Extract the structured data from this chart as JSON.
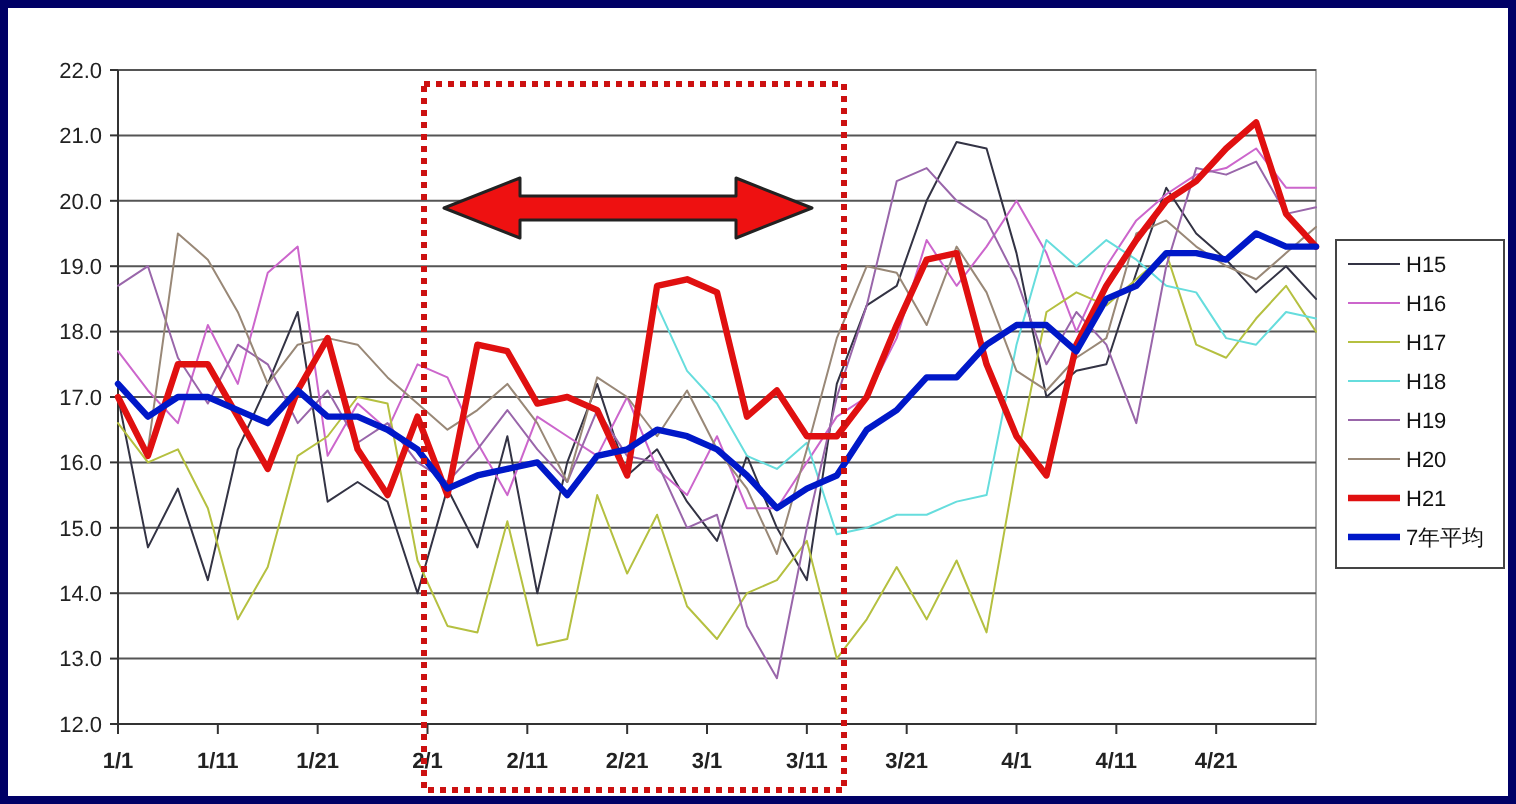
{
  "chart_data": {
    "type": "line",
    "x": [
      "--01-01",
      "--01-04",
      "--01-07",
      "--01-10",
      "--01-13",
      "--01-16",
      "--01-19",
      "--01-22",
      "--01-25",
      "--01-28",
      "--01-31",
      "--02-03",
      "--02-06",
      "--02-09",
      "--02-12",
      "--02-15",
      "--02-18",
      "--02-21",
      "--02-24",
      "--02-27",
      "--03-02",
      "--03-05",
      "--03-08",
      "--03-11",
      "--03-14",
      "--03-17",
      "--03-20",
      "--03-23",
      "--03-26",
      "--03-29",
      "--04-01",
      "--04-04",
      "--04-07",
      "--04-10",
      "--04-13",
      "--04-16",
      "--04-19",
      "--04-22",
      "--04-25",
      "--04-28",
      "--05-01"
    ],
    "xlim": [
      "--01-01",
      "--05-01"
    ],
    "xticks": [
      {
        "value": "--01-01",
        "label": "1/1"
      },
      {
        "value": "--01-11",
        "label": "1/11"
      },
      {
        "value": "--01-21",
        "label": "1/21"
      },
      {
        "value": "--02-01",
        "label": "2/1"
      },
      {
        "value": "--02-11",
        "label": "2/11"
      },
      {
        "value": "--02-21",
        "label": "2/21"
      },
      {
        "value": "--03-01",
        "label": "3/1"
      },
      {
        "value": "--03-11",
        "label": "3/11"
      },
      {
        "value": "--03-21",
        "label": "3/21"
      },
      {
        "value": "--04-01",
        "label": "4/1"
      },
      {
        "value": "--04-11",
        "label": "4/11"
      },
      {
        "value": "--04-21",
        "label": "4/21"
      }
    ],
    "ylim": [
      12,
      22
    ],
    "yticks": [
      {
        "value": 12,
        "label": "12.0"
      },
      {
        "value": 13,
        "label": "13.0"
      },
      {
        "value": 14,
        "label": "14.0"
      },
      {
        "value": 15,
        "label": "15.0"
      },
      {
        "value": 16,
        "label": "16.0"
      },
      {
        "value": 17,
        "label": "17.0"
      },
      {
        "value": 18,
        "label": "18.0"
      },
      {
        "value": 19,
        "label": "19.0"
      },
      {
        "value": 20,
        "label": "20.0"
      },
      {
        "value": 21,
        "label": "21.0"
      },
      {
        "value": 22,
        "label": "22.0"
      }
    ],
    "grid": "y",
    "legend": "right",
    "marker": "none",
    "line_style": "solid",
    "series": [
      {
        "name": "H15",
        "color": "#333344",
        "values": [
          17.0,
          14.7,
          15.6,
          14.2,
          16.2,
          17.2,
          18.3,
          15.4,
          15.7,
          15.4,
          14.0,
          15.6,
          14.7,
          16.4,
          14.0,
          16.0,
          17.2,
          15.8,
          16.2,
          15.4,
          14.8,
          16.1,
          15.0,
          14.2,
          17.2,
          18.4,
          18.7,
          20.0,
          20.9,
          20.8,
          19.2,
          17.0,
          17.4,
          17.5,
          18.9,
          20.2,
          19.5,
          19.1,
          18.6,
          19.0,
          18.5
        ]
      },
      {
        "name": "H16",
        "color": "#cc66cc",
        "values": [
          17.7,
          17.1,
          16.6,
          18.1,
          17.2,
          18.9,
          19.3,
          16.1,
          16.9,
          16.5,
          17.5,
          17.3,
          16.3,
          15.5,
          16.7,
          16.4,
          16.1,
          17.0,
          15.9,
          15.5,
          16.4,
          15.3,
          15.3,
          16.0,
          16.7,
          17.0,
          17.9,
          19.4,
          18.7,
          19.3,
          20.0,
          19.2,
          18.0,
          19.0,
          19.7,
          20.1,
          20.4,
          20.5,
          20.8,
          20.2,
          20.2
        ]
      },
      {
        "name": "H17",
        "color": "#b5c040",
        "values": [
          16.6,
          16.0,
          16.2,
          15.3,
          13.6,
          14.4,
          16.1,
          16.4,
          17.0,
          16.9,
          14.5,
          13.5,
          13.4,
          15.1,
          13.2,
          13.3,
          15.5,
          14.3,
          15.2,
          13.8,
          13.3,
          14.0,
          14.2,
          14.8,
          13.0,
          13.6,
          14.4,
          13.6,
          14.5,
          13.4,
          16.0,
          18.3,
          18.6,
          18.4,
          18.8,
          19.2,
          17.8,
          17.6,
          18.2,
          18.7,
          18.0
        ]
      },
      {
        "name": "H18",
        "color": "#66dddd",
        "values": [
          null,
          null,
          null,
          null,
          null,
          null,
          null,
          null,
          null,
          null,
          null,
          null,
          null,
          null,
          null,
          null,
          null,
          null,
          18.4,
          17.4,
          16.9,
          16.1,
          15.9,
          16.3,
          14.9,
          15.0,
          15.2,
          15.2,
          15.4,
          15.5,
          17.8,
          19.4,
          19.0,
          19.4,
          19.1,
          18.7,
          18.6,
          17.9,
          17.8,
          18.3,
          18.2
        ]
      },
      {
        "name": "H19",
        "color": "#9966aa",
        "values": [
          18.7,
          19.0,
          17.6,
          16.9,
          17.8,
          17.5,
          16.6,
          17.1,
          16.3,
          16.6,
          16.0,
          15.7,
          16.2,
          16.8,
          16.2,
          15.7,
          16.8,
          16.1,
          16.0,
          15.0,
          15.2,
          13.5,
          12.7,
          15.0,
          17.0,
          18.4,
          20.3,
          20.5,
          20.0,
          19.7,
          18.8,
          17.5,
          18.3,
          17.8,
          16.6,
          19.0,
          20.5,
          20.4,
          20.6,
          19.8,
          19.9
        ]
      },
      {
        "name": "H20",
        "color": "#998877",
        "values": [
          null,
          16.2,
          19.5,
          19.1,
          18.3,
          17.2,
          17.8,
          17.9,
          17.8,
          17.3,
          16.9,
          16.5,
          16.8,
          17.2,
          16.6,
          15.7,
          17.3,
          17.0,
          16.4,
          17.1,
          16.2,
          15.6,
          14.6,
          16.2,
          17.9,
          19.0,
          18.9,
          18.1,
          19.3,
          18.6,
          17.4,
          17.1,
          17.6,
          17.9,
          19.5,
          19.7,
          19.3,
          19.0,
          18.8,
          19.2,
          19.6
        ]
      },
      {
        "name": "H21",
        "color": "#e01010",
        "values": [
          17.0,
          16.1,
          17.5,
          17.5,
          16.7,
          15.9,
          17.1,
          17.9,
          16.2,
          15.5,
          16.7,
          15.5,
          17.8,
          17.7,
          16.9,
          17.0,
          16.8,
          15.8,
          18.7,
          18.8,
          18.6,
          16.7,
          17.1,
          16.4,
          16.4,
          17.0,
          18.1,
          19.1,
          19.2,
          17.5,
          16.4,
          15.8,
          17.8,
          18.7,
          19.4,
          20.0,
          20.3,
          20.8,
          21.2,
          19.8,
          19.3
        ]
      },
      {
        "name": "7年平均",
        "color": "#0018c8",
        "values": [
          17.2,
          16.7,
          17.0,
          17.0,
          16.8,
          16.6,
          17.1,
          16.7,
          16.7,
          16.5,
          16.2,
          15.6,
          15.8,
          15.9,
          16.0,
          15.5,
          16.1,
          16.2,
          16.5,
          16.4,
          16.2,
          15.8,
          15.3,
          15.6,
          15.8,
          16.5,
          16.8,
          17.3,
          17.3,
          17.8,
          18.1,
          18.1,
          17.7,
          18.5,
          18.7,
          19.2,
          19.2,
          19.1,
          19.5,
          19.3,
          19.3
        ]
      }
    ]
  }
}
